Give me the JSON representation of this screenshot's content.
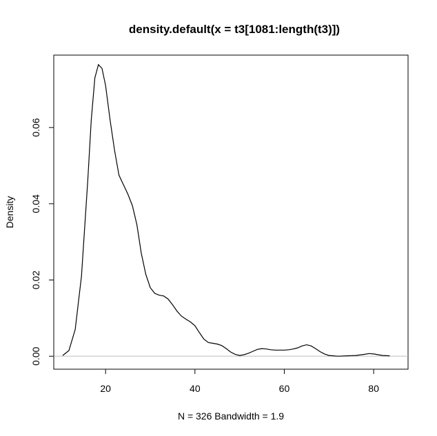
{
  "chart_data": {
    "type": "line",
    "title": "density.default(x = t3[1081:length(t3)])",
    "xlabel": "N = 326   Bandwidth = 1.9",
    "ylabel": "Density",
    "xlim": [
      8.4,
      87.7
    ],
    "ylim": [
      -0.0034,
      0.079
    ],
    "x_ticks": [
      20,
      40,
      60,
      80
    ],
    "x_tick_labels": [
      "20",
      "40",
      "60",
      "80"
    ],
    "y_ticks": [
      0.0,
      0.02,
      0.04,
      0.06
    ],
    "y_tick_labels": [
      "0.00",
      "0.02",
      "0.04",
      "0.06"
    ],
    "grid": false,
    "baseline": 0,
    "series": [
      {
        "x": [
          10.4,
          11.8,
          13.2,
          14.6,
          16.0,
          16.8,
          17.6,
          18.4,
          19.2,
          20.0,
          21.0,
          22.0,
          23.0,
          24.0,
          25.0,
          26.0,
          27.0,
          28.0,
          29.0,
          30.0,
          31.0,
          32.0,
          33.0,
          34.0,
          35.0,
          36.0,
          37.0,
          38.0,
          39.0,
          40.0,
          41.0,
          42.0,
          43.0,
          44.0,
          45.0,
          46.0,
          47.0,
          48.0,
          49.0,
          50.0,
          51.0,
          52.0,
          53.0,
          54.0,
          55.0,
          56.0,
          57.0,
          58.0,
          60.0,
          61.0,
          62.0,
          63.0,
          64.0,
          65.0,
          66.0,
          67.0,
          68.0,
          69.0,
          70.0,
          71.0,
          72.0,
          74.0,
          76.0,
          78.0,
          79.0,
          80.0,
          81.0,
          82.0,
          83.6
        ],
        "y": [
          0.0002,
          0.0015,
          0.007,
          0.021,
          0.046,
          0.062,
          0.073,
          0.0765,
          0.0755,
          0.071,
          0.062,
          0.054,
          0.0475,
          0.045,
          0.0425,
          0.0395,
          0.0345,
          0.027,
          0.0215,
          0.018,
          0.0165,
          0.016,
          0.0158,
          0.015,
          0.0135,
          0.0118,
          0.0105,
          0.0097,
          0.009,
          0.008,
          0.0062,
          0.0045,
          0.0036,
          0.0034,
          0.0032,
          0.0028,
          0.002,
          0.0011,
          0.0005,
          0.0002,
          0.0004,
          0.0008,
          0.0013,
          0.0018,
          0.002,
          0.0019,
          0.0017,
          0.0016,
          0.0016,
          0.0017,
          0.0019,
          0.0022,
          0.0027,
          0.003,
          0.0027,
          0.002,
          0.0012,
          0.0006,
          0.0002,
          0.0001,
          0.0,
          0.0001,
          0.0002,
          0.0005,
          0.0007,
          0.0006,
          0.0004,
          0.0002,
          0.0001
        ]
      }
    ]
  }
}
